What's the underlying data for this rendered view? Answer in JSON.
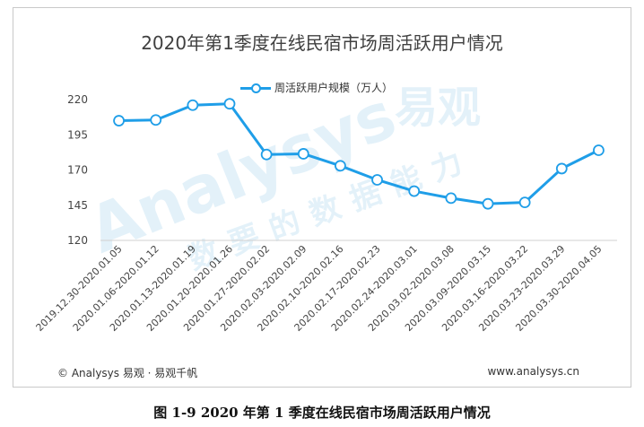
{
  "chart_data": {
    "type": "line",
    "title": "2020年第1季度在线民宿市场周活跃用户情况",
    "categories": [
      "2019.12.30-2020.01.05",
      "2020.01.06-2020.01.12",
      "2020.01.13-2020.01.19",
      "2020.01.20-2020.01.26",
      "2020.01.27-2020.02.02",
      "2020.02.03-2020.02.09",
      "2020.02.10-2020.02.16",
      "2020.02.17-2020.02.23",
      "2020.02.24-2020.03.01",
      "2020.03.02-2020.03.08",
      "2020.03.09-2020.03.15",
      "2020.03.16-2020.03.22",
      "2020.03.23-2020.03.29",
      "2020.03.30-2020.04.05"
    ],
    "series": [
      {
        "name": "周活跃用户规模（万人）",
        "color": "#1f9ee8",
        "values": [
          205,
          205.5,
          216,
          217,
          181,
          181.5,
          173,
          163,
          155,
          150,
          146,
          147,
          171,
          184
        ]
      }
    ],
    "yticks": [
      "220",
      "195",
      "170",
      "145",
      "120"
    ],
    "ylim": [
      120,
      220
    ],
    "grid": false,
    "legend_position": "top-center"
  },
  "footer": {
    "left": "© Analysys 易观 · 易观千帆",
    "right": "www.analysys.cn"
  },
  "caption": "图  1-9  2020 年第 1 季度在线民宿市场周活跃用户情况",
  "watermark": {
    "brand": "Analysys",
    "brand_cn": "易观",
    "slogan": "数要的数据能力"
  }
}
